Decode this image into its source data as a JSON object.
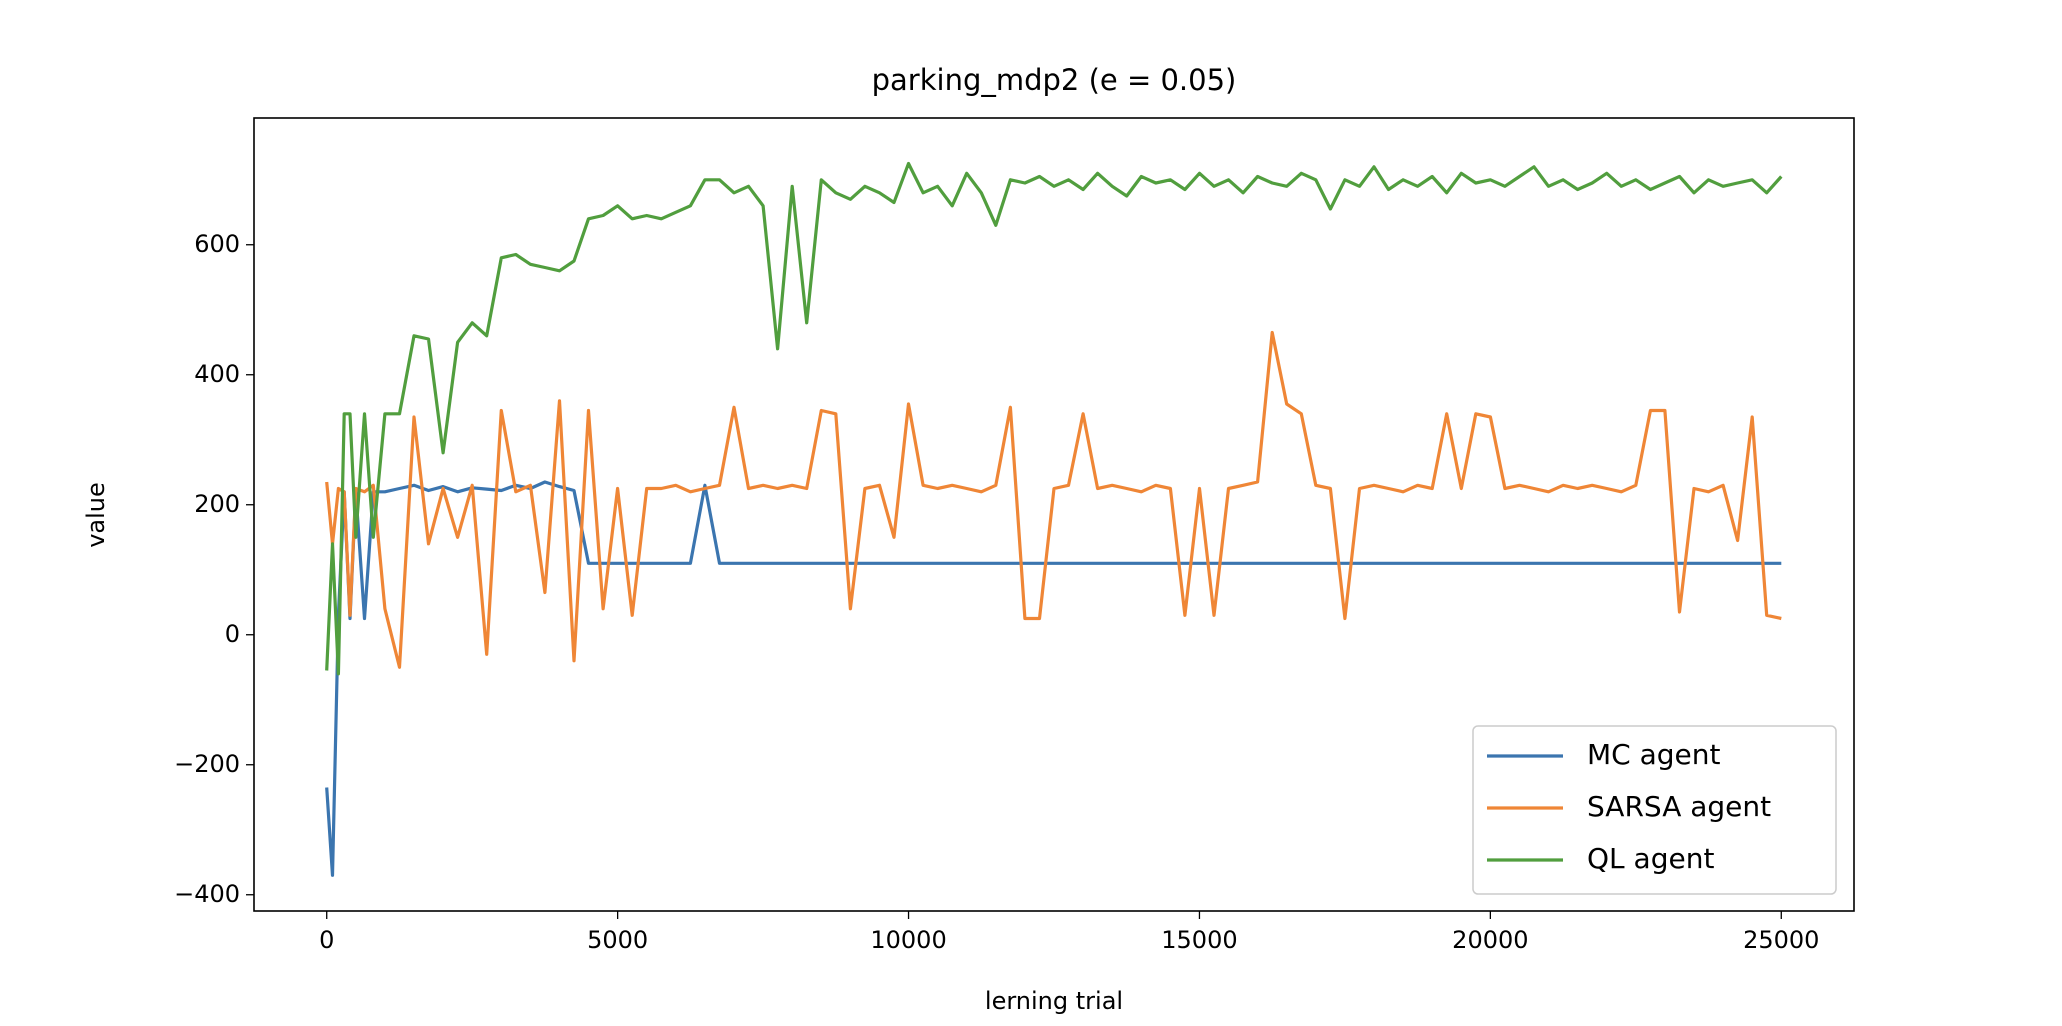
{
  "chart_data": {
    "type": "line",
    "title": "parking_mdp2 (e = 0.05)",
    "x_label": "lerning trial",
    "y_label": "value",
    "x": [
      0,
      100,
      200,
      300,
      400,
      500,
      650,
      800,
      1000,
      1250,
      1500,
      1750,
      2000,
      2250,
      2500,
      2750,
      3000,
      3250,
      3500,
      3750,
      4000,
      4250,
      4500,
      4750,
      5000,
      5250,
      5500,
      5750,
      6000,
      6250,
      6500,
      6750,
      7000,
      7250,
      7500,
      7750,
      8000,
      8250,
      8500,
      8750,
      9000,
      9250,
      9500,
      9750,
      10000,
      10250,
      10500,
      10750,
      11000,
      11250,
      11500,
      11750,
      12000,
      12250,
      12500,
      12750,
      13000,
      13250,
      13500,
      13750,
      14000,
      14250,
      14500,
      14750,
      15000,
      15250,
      15500,
      15750,
      16000,
      16250,
      16500,
      16750,
      17000,
      17250,
      17500,
      17750,
      18000,
      18250,
      18500,
      18750,
      19000,
      19250,
      19500,
      19750,
      20000,
      20250,
      20500,
      20750,
      21000,
      21250,
      21500,
      21750,
      22000,
      22250,
      22500,
      22750,
      23000,
      23250,
      23500,
      23750,
      24000,
      24250,
      24500,
      24750,
      25000
    ],
    "series": [
      {
        "name": "MC agent",
        "color": "#3b75af",
        "values": [
          -235,
          -370,
          30,
          220,
          25,
          220,
          25,
          220,
          220,
          225,
          230,
          222,
          228,
          220,
          226,
          224,
          222,
          230,
          225,
          235,
          228,
          222,
          110,
          110,
          110,
          110,
          110,
          110,
          110,
          110,
          230,
          110,
          110,
          110,
          110,
          110,
          110,
          110,
          110,
          110,
          110,
          110,
          110,
          110,
          110,
          110,
          110,
          110,
          110,
          110,
          110,
          110,
          110,
          110,
          110,
          110,
          110,
          110,
          110,
          110,
          110,
          110,
          110,
          110,
          110,
          110,
          110,
          110,
          110,
          110,
          110,
          110,
          110,
          110,
          110,
          110,
          110,
          110,
          110,
          110,
          110,
          110,
          110,
          110,
          110,
          110,
          110,
          110,
          110,
          110,
          110,
          110,
          110,
          110,
          110,
          110,
          110,
          110,
          110,
          110,
          110,
          110,
          110,
          110,
          110
        ]
      },
      {
        "name": "SARSA agent",
        "color": "#ef8636",
        "values": [
          235,
          140,
          225,
          220,
          30,
          225,
          220,
          230,
          40,
          -50,
          335,
          140,
          225,
          150,
          230,
          -30,
          345,
          220,
          230,
          65,
          360,
          -40,
          345,
          40,
          225,
          30,
          225,
          225,
          230,
          220,
          225,
          230,
          350,
          225,
          230,
          225,
          230,
          225,
          345,
          340,
          40,
          225,
          230,
          150,
          355,
          230,
          225,
          230,
          225,
          220,
          230,
          350,
          25,
          25,
          225,
          230,
          340,
          225,
          230,
          225,
          220,
          230,
          225,
          30,
          225,
          30,
          225,
          230,
          235,
          465,
          355,
          340,
          230,
          225,
          25,
          225,
          230,
          225,
          220,
          230,
          225,
          340,
          225,
          340,
          335,
          225,
          230,
          225,
          220,
          230,
          225,
          230,
          225,
          220,
          230,
          345,
          345,
          35,
          225,
          220,
          230,
          145,
          335,
          30,
          25
        ]
      },
      {
        "name": "QL agent",
        "color": "#519e3e",
        "values": [
          -55,
          140,
          -60,
          340,
          340,
          150,
          340,
          150,
          340,
          340,
          460,
          455,
          280,
          450,
          480,
          460,
          580,
          585,
          570,
          565,
          560,
          575,
          640,
          645,
          660,
          640,
          645,
          640,
          650,
          660,
          700,
          700,
          680,
          690,
          660,
          440,
          690,
          480,
          700,
          680,
          670,
          690,
          680,
          665,
          725,
          680,
          690,
          660,
          710,
          680,
          630,
          700,
          695,
          705,
          690,
          700,
          685,
          710,
          690,
          675,
          705,
          695,
          700,
          685,
          710,
          690,
          700,
          680,
          705,
          695,
          690,
          710,
          700,
          655,
          700,
          690,
          720,
          685,
          700,
          690,
          705,
          680,
          710,
          695,
          700,
          690,
          705,
          720,
          690,
          700,
          685,
          695,
          710,
          690,
          700,
          685,
          695,
          705,
          680,
          700,
          690,
          695,
          700,
          680,
          705
        ]
      }
    ],
    "xlim": [
      -1250,
      26250
    ],
    "ylim": [
      -425,
      795
    ],
    "xticks": [
      0,
      5000,
      10000,
      15000,
      20000,
      25000
    ],
    "yticks": [
      {
        "value": -400,
        "label": "−400"
      },
      {
        "value": -200,
        "label": "−200"
      },
      0,
      200,
      400,
      600
    ],
    "legend": "lower right"
  }
}
